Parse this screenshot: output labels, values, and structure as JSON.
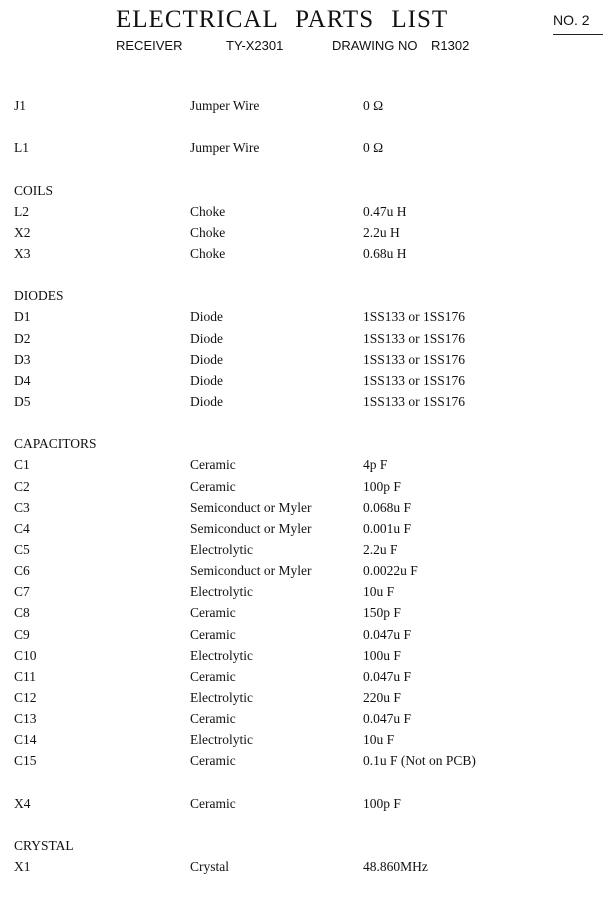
{
  "header": {
    "title": "ELECTRICAL PARTS LIST",
    "page_no": "NO. 2",
    "product": "RECEIVER",
    "model": "TY-X2301",
    "drawing_label": "DRAWING NO",
    "drawing_no": "R1302"
  },
  "sections": [
    {
      "heading": "",
      "items": [
        {
          "ref": "J1",
          "type": "Jumper Wire",
          "value": "0 Ω"
        }
      ]
    },
    {
      "heading": "",
      "items": [
        {
          "ref": "L1",
          "type": "Jumper Wire",
          "value": "0 Ω"
        }
      ]
    },
    {
      "heading": "COILS",
      "items": [
        {
          "ref": "L2",
          "type": "Choke",
          "value": "0.47u H"
        },
        {
          "ref": "X2",
          "type": "Choke",
          "value": "2.2u H"
        },
        {
          "ref": "X3",
          "type": "Choke",
          "value": "0.68u H"
        }
      ]
    },
    {
      "heading": "DIODES",
      "items": [
        {
          "ref": "D1",
          "type": "Diode",
          "value": "1SS133 or 1SS176"
        },
        {
          "ref": "D2",
          "type": "Diode",
          "value": "1SS133 or 1SS176"
        },
        {
          "ref": "D3",
          "type": "Diode",
          "value": "1SS133 or 1SS176"
        },
        {
          "ref": "D4",
          "type": "Diode",
          "value": "1SS133 or 1SS176"
        },
        {
          "ref": "D5",
          "type": "Diode",
          "value": "1SS133 or 1SS176"
        }
      ]
    },
    {
      "heading": "CAPACITORS",
      "items": [
        {
          "ref": "C1",
          "type": "Ceramic",
          "value": "4p F"
        },
        {
          "ref": "C2",
          "type": "Ceramic",
          "value": "100p F"
        },
        {
          "ref": "C3",
          "type": "Semiconduct or Myler",
          "value": "0.068u F"
        },
        {
          "ref": "C4",
          "type": "Semiconduct or Myler",
          "value": "0.001u F"
        },
        {
          "ref": "C5",
          "type": "Electrolytic",
          "value": "2.2u F"
        },
        {
          "ref": "C6",
          "type": "Semiconduct or Myler",
          "value": "0.0022u F"
        },
        {
          "ref": "C7",
          "type": "Electrolytic",
          "value": "10u F"
        },
        {
          "ref": "C8",
          "type": "Ceramic",
          "value": "150p F"
        },
        {
          "ref": "C9",
          "type": "Ceramic",
          "value": "0.047u F"
        },
        {
          "ref": "C10",
          "type": "Electrolytic",
          "value": "100u F"
        },
        {
          "ref": "C11",
          "type": "Ceramic",
          "value": "0.047u F"
        },
        {
          "ref": "C12",
          "type": "Electrolytic",
          "value": "220u F"
        },
        {
          "ref": "C13",
          "type": "Ceramic",
          "value": "0.047u F"
        },
        {
          "ref": "C14",
          "type": "Electrolytic",
          "value": "10u F"
        },
        {
          "ref": "C15",
          "type": "Ceramic",
          "value": "0.1u F (Not on PCB)"
        }
      ]
    },
    {
      "heading": "",
      "items": [
        {
          "ref": "X4",
          "type": "Ceramic",
          "value": "100p F"
        }
      ]
    },
    {
      "heading": "CRYSTAL",
      "items": [
        {
          "ref": "X1",
          "type": "Crystal",
          "value": "48.860MHz"
        }
      ]
    }
  ]
}
